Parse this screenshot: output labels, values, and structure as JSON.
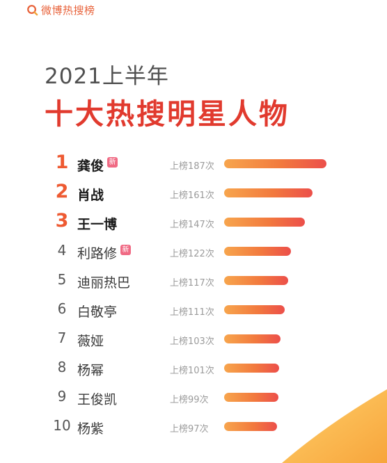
{
  "brand": {
    "name": "微博热搜榜",
    "accent_color": "#e8623a"
  },
  "header": {
    "period": "2021上半年",
    "title": "十大热搜明星人物"
  },
  "chart_data": {
    "type": "bar",
    "orientation": "horizontal",
    "xlim": [
      0,
      187
    ],
    "grid": false,
    "new_badge_label": "新",
    "rows": [
      {
        "rank": "1",
        "name": "龚俊",
        "count_label": "上榜187次",
        "value": 187,
        "is_new": true
      },
      {
        "rank": "2",
        "name": "肖战",
        "count_label": "上榜161次",
        "value": 161,
        "is_new": false
      },
      {
        "rank": "3",
        "name": "王一博",
        "count_label": "上榜147次",
        "value": 147,
        "is_new": false
      },
      {
        "rank": "4",
        "name": "利路修",
        "count_label": "上榜122次",
        "value": 122,
        "is_new": true
      },
      {
        "rank": "5",
        "name": "迪丽热巴",
        "count_label": "上榜117次",
        "value": 117,
        "is_new": false
      },
      {
        "rank": "6",
        "name": "白敬亭",
        "count_label": "上榜111次",
        "value": 111,
        "is_new": false
      },
      {
        "rank": "7",
        "name": "薇娅",
        "count_label": "上榜103次",
        "value": 103,
        "is_new": false
      },
      {
        "rank": "8",
        "name": "杨幂",
        "count_label": "上榜101次",
        "value": 101,
        "is_new": false
      },
      {
        "rank": "9",
        "name": "王俊凯",
        "count_label": "上榜99次",
        "value": 99,
        "is_new": false
      },
      {
        "rank": "10",
        "name": "杨紫",
        "count_label": "上榜97次",
        "value": 97,
        "is_new": false
      }
    ]
  },
  "colors": {
    "title": "#e13a2e",
    "top_rank": "#ee5a32",
    "badge": "#f06a84",
    "bar_start": "#f7a54d",
    "bar_end": "#ec4f4a"
  }
}
